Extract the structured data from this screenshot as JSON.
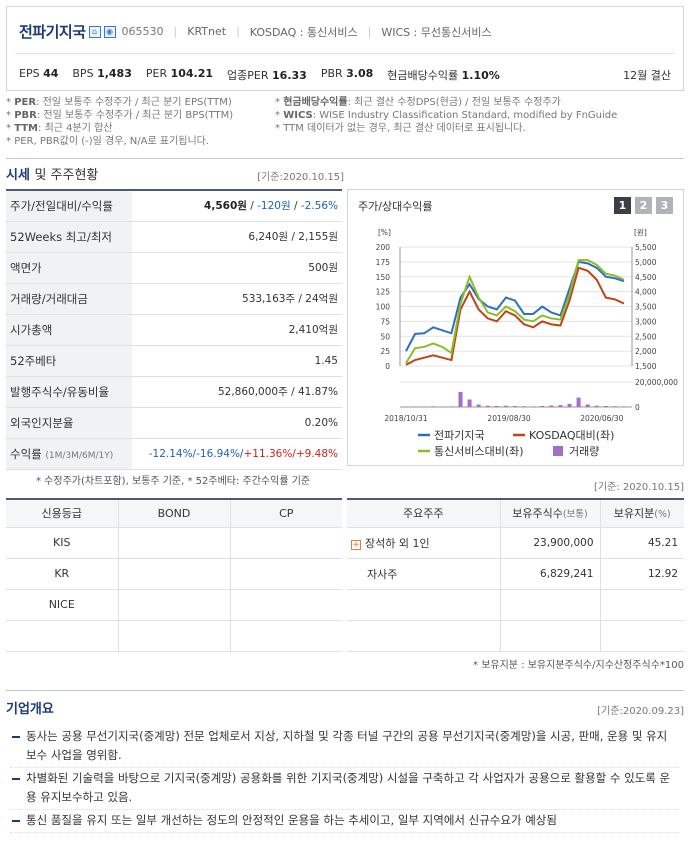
{
  "header": {
    "company": "전파기지국",
    "code": "065530",
    "krt": "KRTnet",
    "market": "KOSDAQ : 통신서비스",
    "wics": "WICS : 무선통신서비스",
    "settle": "12월 결산",
    "metrics": [
      {
        "label": "EPS",
        "value": "44"
      },
      {
        "label": "BPS",
        "value": "1,483"
      },
      {
        "label": "PER",
        "value": "104.21"
      },
      {
        "label": "업종PER",
        "value": "16.33"
      },
      {
        "label": "PBR",
        "value": "3.08"
      },
      {
        "label": "현금배당수익률",
        "value": "1.10%"
      }
    ]
  },
  "notes": {
    "left": [
      {
        "k": "PER",
        "v": ": 전일 보통주 수정주가 / 최근 분기 EPS(TTM)"
      },
      {
        "k": "PBR",
        "v": ": 전일 보통주 수정주가 / 최근 분기 BPS(TTM)"
      },
      {
        "k": "TTM",
        "v": ": 최근 4분기 합산"
      },
      {
        "k": "",
        "v": "PER, PBR값이 (-)일 경우, N/A로 표기됩니다."
      }
    ],
    "right": [
      {
        "k": "현금배당수익률",
        "v": ": 최근 결산 수정DPS(현금) / 전일 보통주 수정주가"
      },
      {
        "k": "WICS",
        "v": ": WISE Industry Classification Standard, modified by FnGuide"
      },
      {
        "k": "",
        "v": "TTM 데이터가 없는 경우, 최근 결산 데이터로 표시됩니다."
      }
    ]
  },
  "price_section": {
    "title": "시세",
    "title_rest": "및 주주현황",
    "date": "[기준:2020.10.15]",
    "rows": [
      {
        "label": "주가/전일대비/수익률",
        "price": "4,560원",
        "change": "-120원",
        "rate": "-2.56%"
      },
      {
        "label": "52Weeks 최고/최저",
        "value": "6,240원 / 2,155원"
      },
      {
        "label": "액면가",
        "value": "500원"
      },
      {
        "label": "거래량/거래대금",
        "value": "533,163주 / 24억원"
      },
      {
        "label": "시가총액",
        "value": "2,410억원"
      },
      {
        "label": "52주베타",
        "value": "1.45"
      },
      {
        "label": "발행주식수/유동비율",
        "value": "52,860,000주 / 41.87%"
      },
      {
        "label": "외국인지분율",
        "value": "0.20%"
      }
    ],
    "returns": {
      "label": "수익률",
      "periods": "(1M/3M/6M/1Y)",
      "r1": "-12.14%/",
      "r2": "-16.94%/",
      "r3": "+11.36%/",
      "r4": "+9.48%"
    },
    "footnote": "* 수정주가(차트포함), 보통주 기준, * 52주베타: 주간수익률 기준"
  },
  "chart_box": {
    "title": "주가/상대수익률",
    "pages": [
      "1",
      "2",
      "3"
    ],
    "active_page": "1"
  },
  "chart_data": {
    "type": "line",
    "left_axis_unit": "[%]",
    "right_axis_unit": "[원]",
    "left_ticks": [
      "200",
      "175",
      "150",
      "125",
      "100",
      "75",
      "50",
      "25",
      "0"
    ],
    "right_ticks": [
      "5,500",
      "5,000",
      "4,500",
      "4,000",
      "3,500",
      "3,000",
      "2,500",
      "2,000",
      "1,500"
    ],
    "volume_ticks": [
      "20,000,000",
      "0"
    ],
    "x_labels": [
      "2018/10/31",
      "2019/08/30",
      "2020/06/30"
    ],
    "ylim_left": [
      0,
      200
    ],
    "ylim_right": [
      1500,
      5500
    ],
    "series": [
      {
        "name": "전파기지국",
        "color": "#2e6fc4",
        "axis": "right",
        "values": [
          2000,
          2580,
          2600,
          2800,
          2700,
          2600,
          3800,
          4250,
          3750,
          3500,
          3400,
          3800,
          3700,
          3250,
          3250,
          3500,
          3300,
          3200,
          4100,
          5000,
          4950,
          4800,
          4500,
          4450,
          4350
        ]
      },
      {
        "name": "KOSDAQ대비(좌)",
        "color": "#c0441a",
        "axis": "left",
        "values": [
          2,
          10,
          14,
          18,
          14,
          10,
          95,
          125,
          95,
          80,
          75,
          92,
          85,
          70,
          65,
          75,
          70,
          68,
          110,
          165,
          160,
          145,
          115,
          112,
          105
        ]
      },
      {
        "name": "통신서비스대비(좌)",
        "color": "#8cbd28",
        "axis": "left",
        "values": [
          5,
          30,
          32,
          38,
          32,
          22,
          105,
          150,
          115,
          90,
          85,
          100,
          92,
          78,
          75,
          85,
          80,
          78,
          120,
          178,
          178,
          170,
          155,
          152,
          145
        ]
      },
      {
        "name": "거래량",
        "color": "#a46ec8",
        "axis": "volume",
        "values": [
          0.3,
          0.4,
          0.3,
          0.5,
          0.4,
          0.5,
          12,
          6,
          2,
          1,
          0.8,
          1,
          0.8,
          0.6,
          0.5,
          0.8,
          1.2,
          1.5,
          2.5,
          7.5,
          2,
          1,
          0.8,
          0.6,
          0.5
        ]
      }
    ],
    "volume_max": 20000000
  },
  "grade": {
    "headers": [
      "신용등급",
      "BOND",
      "CP"
    ],
    "rows": [
      [
        "KIS",
        "",
        ""
      ],
      [
        "KR",
        "",
        ""
      ],
      [
        "NICE",
        "",
        ""
      ],
      [
        "",
        "",
        ""
      ]
    ]
  },
  "holders": {
    "date": "[기준: 2020.10.15]",
    "headers": {
      "h1": "주요주주",
      "h2": "보유주식수",
      "h2s": "(보통)",
      "h3": "보유지분",
      "h3s": "(%)"
    },
    "rows": [
      {
        "name": "장석하 외 1인",
        "shares": "23,900,000",
        "pct": "45.21",
        "expand": "+"
      },
      {
        "name": "자사주",
        "shares": "6,829,241",
        "pct": "12.92"
      },
      {
        "name": "",
        "shares": "",
        "pct": ""
      },
      {
        "name": "",
        "shares": "",
        "pct": ""
      }
    ],
    "footnote": "* 보유지분 : 보유지분주식수/지수산정주식수*100"
  },
  "overview": {
    "title": "기업개요",
    "date": "[기준:2020.09.23]",
    "items": [
      "동사는 공용 무선기지국(중계망) 전문 업체로서 지상, 지하철 및 각종 터널 구간의 공용 무선기지국(중계망)을 시공, 판매, 운용 및 유지 보수 사업을 영위함.",
      "차별화된 기술력을 바탕으로 기지국(중계망) 공용화를 위한 기지국(중계망) 시설을 구축하고 각 사업자가 공용으로 활용할 수 있도록 운용 유지보수하고 있음.",
      "통신 품질을 유지 또는 일부 개선하는 정도의 안정적인 운용을 하는 추세이고, 일부 지역에서 신규수요가 예상됨"
    ]
  }
}
